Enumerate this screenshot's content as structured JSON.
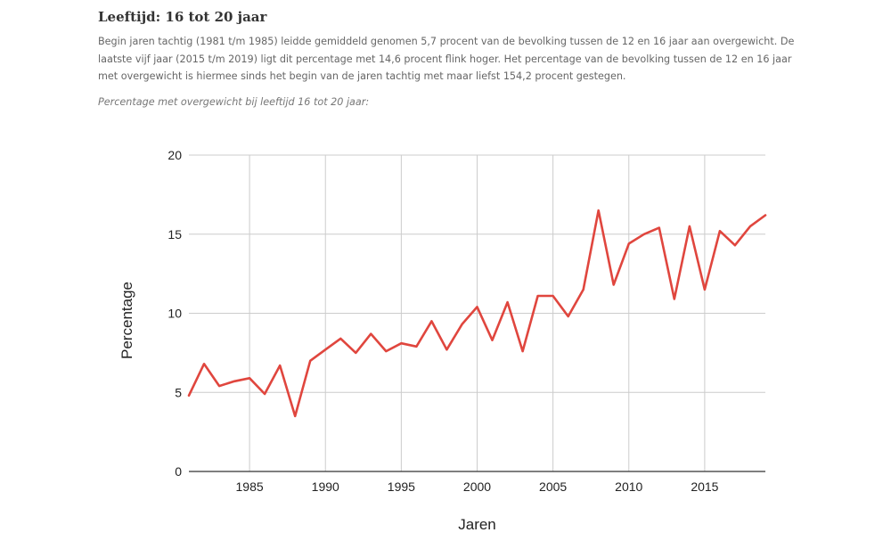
{
  "article": {
    "heading": "Leeftijd: 16 tot 20 jaar",
    "paragraph": "Begin jaren tachtig (1981 t/m 1985) leidde gemiddeld genomen 5,7 procent van de bevolking tussen de 12 en 16 jaar aan overgewicht. De laatste vijf jaar (2015 t/m 2019) ligt dit percentage met 14,6 procent flink hoger. Het percentage van de bevolking tussen de 12 en 16 jaar met overgewicht is hiermee sinds het begin van de jaren tachtig met maar liefst 154,2 procent gestegen.",
    "caption": "Percentage met overgewicht bij leeftijd 16 tot 20 jaar:"
  },
  "chart_data": {
    "type": "line",
    "xlabel": "Jaren",
    "ylabel": "Percentage",
    "xlim": [
      1981,
      2019
    ],
    "ylim": [
      0,
      20
    ],
    "x_ticks": [
      1985,
      1990,
      1995,
      2000,
      2005,
      2010,
      2015
    ],
    "y_ticks": [
      0,
      5,
      10,
      15,
      20
    ],
    "grid": true,
    "line_color": "#e0463e",
    "series": [
      {
        "x": [
          1981,
          1982,
          1983,
          1984,
          1985,
          1986,
          1987,
          1988,
          1989,
          1990,
          1991,
          1992,
          1993,
          1994,
          1995,
          1996,
          1997,
          1998,
          1999,
          2000,
          2001,
          2002,
          2003,
          2004,
          2005,
          2006,
          2007,
          2008,
          2009,
          2010,
          2011,
          2012,
          2013,
          2014,
          2015,
          2016,
          2017,
          2018,
          2019
        ],
        "values": [
          4.8,
          6.8,
          5.4,
          5.7,
          5.9,
          4.9,
          6.7,
          3.5,
          7.0,
          7.7,
          8.4,
          7.5,
          8.7,
          7.6,
          8.1,
          7.9,
          9.5,
          7.7,
          9.3,
          10.4,
          8.3,
          10.7,
          7.6,
          11.1,
          11.1,
          9.8,
          11.5,
          16.5,
          11.8,
          14.4,
          15.0,
          15.4,
          10.9,
          15.5,
          11.5,
          15.2,
          14.3,
          15.5,
          16.2
        ]
      }
    ]
  }
}
